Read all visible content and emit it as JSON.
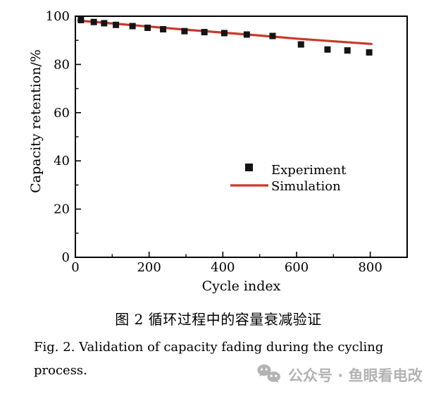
{
  "chart_data": {
    "type": "line",
    "title": "",
    "xlabel": "Cycle index",
    "ylabel": "Capacity retention/%",
    "xlim": [
      0,
      900
    ],
    "ylim": [
      0,
      100
    ],
    "x_major_ticks": [
      0,
      200,
      400,
      600,
      800
    ],
    "x_minor_ticks": [
      100,
      300,
      500,
      700
    ],
    "y_major_ticks": [
      0,
      20,
      40,
      60,
      80,
      100
    ],
    "y_minor_ticks": [
      10,
      30,
      50,
      70,
      90
    ],
    "grid": false,
    "legend_position": "center-right-inside",
    "frame_color": "#000000",
    "series": [
      {
        "name": "Experiment",
        "type": "scatter",
        "marker": "square",
        "color": "#141414",
        "x": [
          15,
          50,
          78,
          110,
          155,
          196,
          238,
          296,
          350,
          404,
          465,
          535,
          612,
          684,
          738,
          797
        ],
        "y": [
          98.4,
          97.6,
          97.1,
          96.4,
          95.9,
          95.2,
          94.6,
          93.8,
          93.4,
          93.0,
          92.4,
          91.8,
          88.3,
          86.2,
          85.8,
          85.0
        ]
      },
      {
        "name": "Simulation",
        "type": "line",
        "color": "#c8392b",
        "x": [
          8,
          100,
          200,
          300,
          400,
          500,
          600,
          700,
          803
        ],
        "y": [
          98.2,
          97.0,
          95.7,
          94.4,
          93.2,
          92.0,
          90.7,
          89.6,
          88.5
        ]
      }
    ]
  },
  "captions": {
    "zh": "图 2    循环过程中的容量衰减验证",
    "en_line1": "Fig. 2.  Validation of capacity fading during the cycling",
    "en_line2": "process."
  },
  "watermark": {
    "icon": "wechat-icon",
    "text": "公众号 · 鱼眼看电改",
    "color": "#b3b3b3"
  }
}
